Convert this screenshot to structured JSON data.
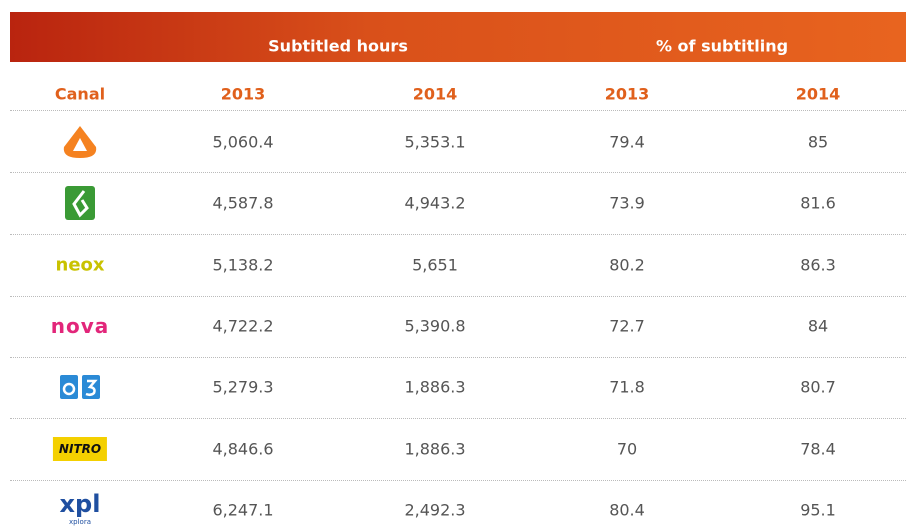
{
  "header": {
    "groups": [
      "Subtitled hours",
      "% of subtitling"
    ],
    "columns": [
      "Canal",
      "2013",
      "2014",
      "2013",
      "2014"
    ]
  },
  "table": {
    "rows": [
      {
        "cells": [
          "5,060.4",
          "5,353.1",
          "79.4",
          "85"
        ]
      },
      {
        "cells": [
          "4,587.8",
          "4,943.2",
          "73.9",
          "81.6"
        ]
      },
      {
        "logo": "neox",
        "cells": [
          "5,138.2",
          "5,651",
          "80.2",
          "86.3"
        ]
      },
      {
        "logo": "nova",
        "cells": [
          "4,722.2",
          "5,390.8",
          "72.7",
          "84"
        ]
      },
      {
        "cells": [
          "5,279.3",
          "1,886.3",
          "71.8",
          "80.7"
        ]
      },
      {
        "logo": "NITRO",
        "cells": [
          "4,846.6",
          "1,886.3",
          "70",
          "78.4"
        ]
      },
      {
        "logo": "xpl",
        "logo_sub": "xplora",
        "cells": [
          "6,247.1",
          "2,492.3",
          "80.4",
          "95.1"
        ]
      }
    ]
  }
}
